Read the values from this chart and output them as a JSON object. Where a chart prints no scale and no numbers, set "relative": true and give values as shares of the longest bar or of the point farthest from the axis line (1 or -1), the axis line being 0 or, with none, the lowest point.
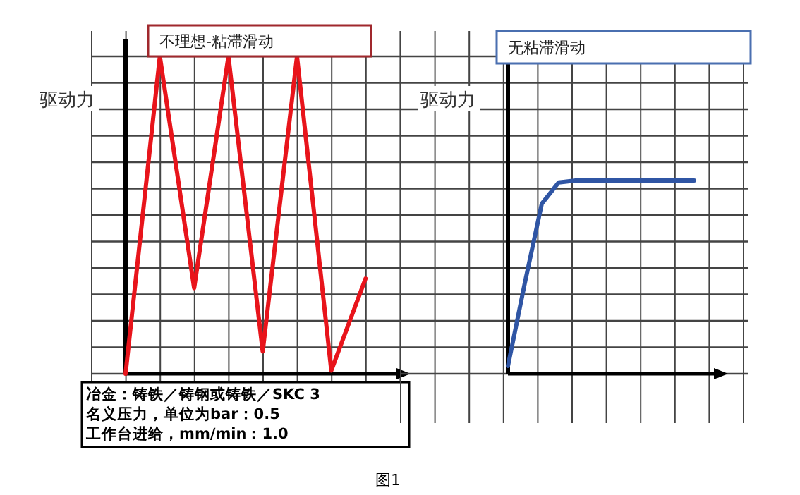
{
  "chart_data": [
    {
      "type": "line",
      "title": "不理想-粘滞滑动",
      "ylabel": "驱动力",
      "relative": true,
      "grid": true,
      "categories": [
        null,
        null,
        null,
        null,
        null,
        null,
        null,
        null
      ],
      "series": [
        {
          "color": "#e8141b",
          "values": [
            0,
            1,
            0.27,
            1,
            0.07,
            1,
            0.01,
            0.3
          ]
        }
      ],
      "annotations": [
        "冶金：铸铁／铸钢或铸铁／SKC 3",
        "名义压力，单位为bar：0.5",
        "工作台进给，mm/min：1.0",
        "图1"
      ]
    },
    {
      "type": "line",
      "title": "无粘滞滑动",
      "ylabel": "驱动力",
      "relative": true,
      "grid": true,
      "categories": [
        null,
        null,
        null,
        null,
        null,
        null,
        null,
        null,
        null,
        null,
        null,
        null
      ],
      "series": [
        {
          "color": "#2f55a4",
          "values": [
            0.04,
            0.47,
            0.88,
            0.99,
            1,
            1,
            1,
            1,
            1,
            1,
            1,
            1
          ]
        }
      ]
    }
  ]
}
